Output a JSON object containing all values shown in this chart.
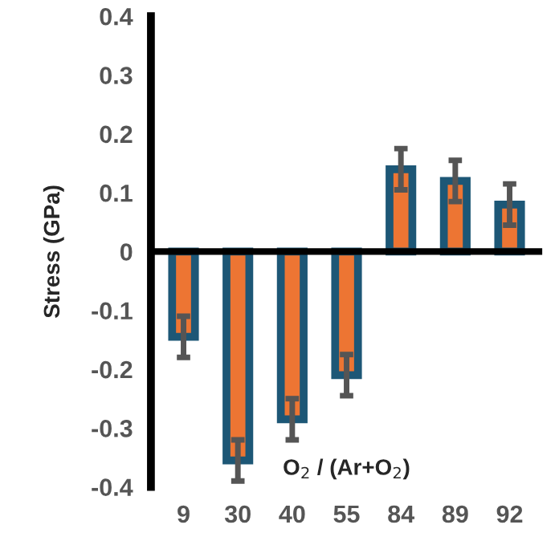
{
  "chart_data": {
    "type": "bar",
    "xlabel": "O$_{2}$ / (Ar+O$_{2}$)",
    "ylabel": "Stress (GPa)",
    "categories": [
      "9",
      "30",
      "40",
      "55",
      "84",
      "89",
      "92"
    ],
    "series": [
      {
        "color": "#ed7533",
        "values": [
          -0.145,
          -0.355,
          -0.285,
          -0.21,
          0.14,
          0.12,
          0.08
        ],
        "errors": [
          0.035,
          0.035,
          0.035,
          0.035,
          0.035,
          0.035,
          0.035
        ]
      }
    ],
    "ylim": [
      -0.4,
      0.4
    ],
    "yticks": [
      -0.4,
      -0.3,
      -0.2,
      -0.1,
      0,
      0.1,
      0.2,
      0.3,
      0.4
    ],
    "ref_lines": [
      {
        "axis": "y",
        "value": 0,
        "color": "#000000"
      }
    ],
    "grid": false,
    "legend": false
  }
}
